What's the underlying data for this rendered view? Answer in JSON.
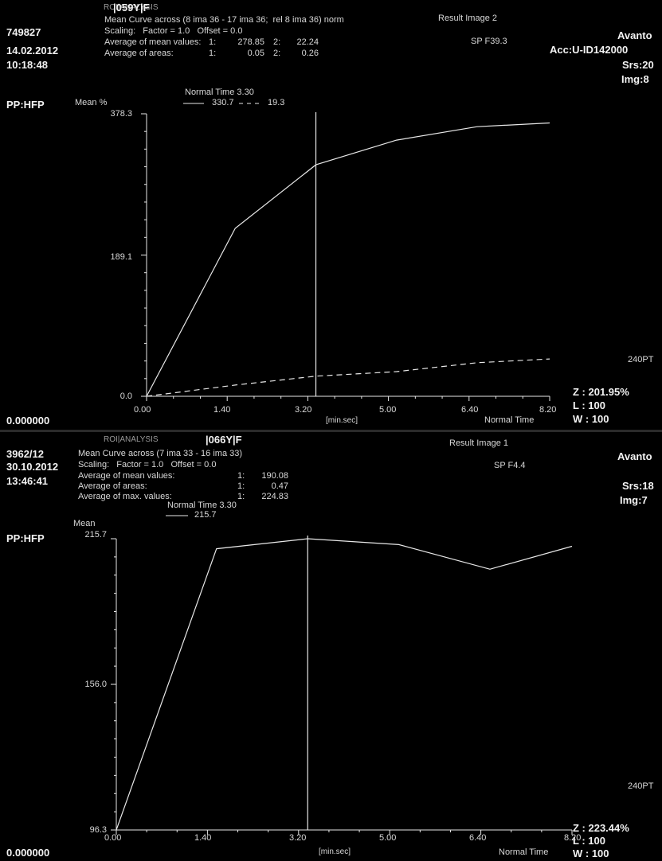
{
  "top": {
    "patient_id": "|059Y|F",
    "overlap_text": "ROI|ANALYSIS",
    "id_left": "749827",
    "date": "14.02.2012",
    "time": "10:18:48",
    "curve_info": "Mean Curve across (8 ima 36 - 17 ima 36;  rel 8 ima 36) norm",
    "scaling": "Scaling:   Factor = 1.0   Offset = 0.0",
    "avg_mean_label": "Average of mean values:",
    "avg_mean_1": "1:",
    "avg_mean_v1": "278.85",
    "avg_mean_2": "2:",
    "avg_mean_v2": "22.24",
    "avg_area_label": "Average of areas:",
    "avg_area_1": "1:",
    "avg_area_v1": "0.05",
    "avg_area_2": "2:",
    "avg_area_v2": "0.26",
    "result_image": "Result Image 2",
    "sp": "SP F39.3",
    "scanner": "Avanto",
    "acc": "Acc:U-ID142000",
    "srs": "Srs:20",
    "img": "Img:8",
    "pp": "PP:HFP",
    "legend_title": "Normal Time 3.30",
    "legend_solid": "330.7",
    "legend_dashed": "19.3",
    "mean_label": "Mean %",
    "units": "[min.sec]",
    "normal_time": "Normal Time",
    "bottom_left": "0.000000",
    "zoom": "Z : 201.95%",
    "level": "L : 100",
    "width": "W : 100",
    "pt": "240PT"
  },
  "bottom": {
    "patient_id": "|066Y|F",
    "overlap_text": "ROI|ANALYSIS",
    "id_left": "3962/12",
    "date": "30.10.2012",
    "time": "13:46:41",
    "curve_info": "Mean Curve across (7 ima 33 - 16 ima 33)",
    "scaling": "Scaling:   Factor = 1.0   Offset = 0.0",
    "avg_mean_label": "Average of mean values:",
    "avg_mean_1": "1:",
    "avg_mean_v1": "190.08",
    "avg_area_label": "Average of areas:",
    "avg_area_1": "1:",
    "avg_area_v1": "0.47",
    "avg_max_label": "Average of max. values:",
    "avg_max_1": "1:",
    "avg_max_v1": "224.83",
    "result_image": "Result Image 1",
    "sp": "SP F4.4",
    "scanner": "Avanto",
    "srs": "Srs:18",
    "img": "Img:7",
    "pp": "PP:HFP",
    "legend_title": "Normal Time 3.30",
    "legend_solid": "215.7",
    "mean_label": "Mean",
    "units": "[min.sec]",
    "normal_time": "Normal Time",
    "bottom_left": "0.000000",
    "zoom": "Z : 223.44%",
    "level": "L : 100",
    "width": "W : 100",
    "pt": "240PT"
  },
  "chart_data": [
    {
      "type": "line",
      "x_tick_labels": [
        "0.00",
        "1.40",
        "3.20",
        "5.00",
        "6.40",
        "8.20"
      ],
      "x_ticks": [
        0,
        100,
        200,
        300,
        400,
        500
      ],
      "xlim": [
        0,
        500
      ],
      "ylim": [
        0,
        378.3
      ],
      "y_tick_labels": [
        "0.0",
        "189.1",
        "378.3"
      ],
      "ylabel": "Mean %",
      "xlabel": "[min.sec]",
      "marker_label": "Normal Time 3.30",
      "marker_x": 210,
      "line_color": "#e8e8e8",
      "series": [
        {
          "name": "330.7",
          "style": "solid",
          "x": [
            0,
            110,
            210,
            310,
            410,
            500
          ],
          "y": [
            0,
            225,
            310,
            343,
            361,
            366
          ]
        },
        {
          "name": "19.3",
          "style": "dashed",
          "x": [
            0,
            110,
            210,
            310,
            410,
            500
          ],
          "y": [
            0,
            15,
            27,
            33,
            45,
            50
          ]
        }
      ]
    },
    {
      "type": "line",
      "x_tick_labels": [
        "0.00",
        "1.40",
        "3.20",
        "5.00",
        "6.40",
        "8.20"
      ],
      "x_ticks": [
        0,
        100,
        200,
        300,
        400,
        500
      ],
      "xlim": [
        0,
        500
      ],
      "ylim": [
        96.3,
        215.7
      ],
      "y_tick_labels": [
        "96.3",
        "156.0",
        "215.7"
      ],
      "ylabel": "Mean",
      "xlabel": "[min.sec]",
      "marker_label": "Normal Time 3.30",
      "marker_x": 210,
      "line_color": "#e8e8e8",
      "series": [
        {
          "name": "215.7",
          "style": "solid",
          "x": [
            0,
            110,
            210,
            310,
            410,
            500
          ],
          "y": [
            96.3,
            211.6,
            215.7,
            213.3,
            203.2,
            212.6
          ]
        }
      ]
    }
  ]
}
